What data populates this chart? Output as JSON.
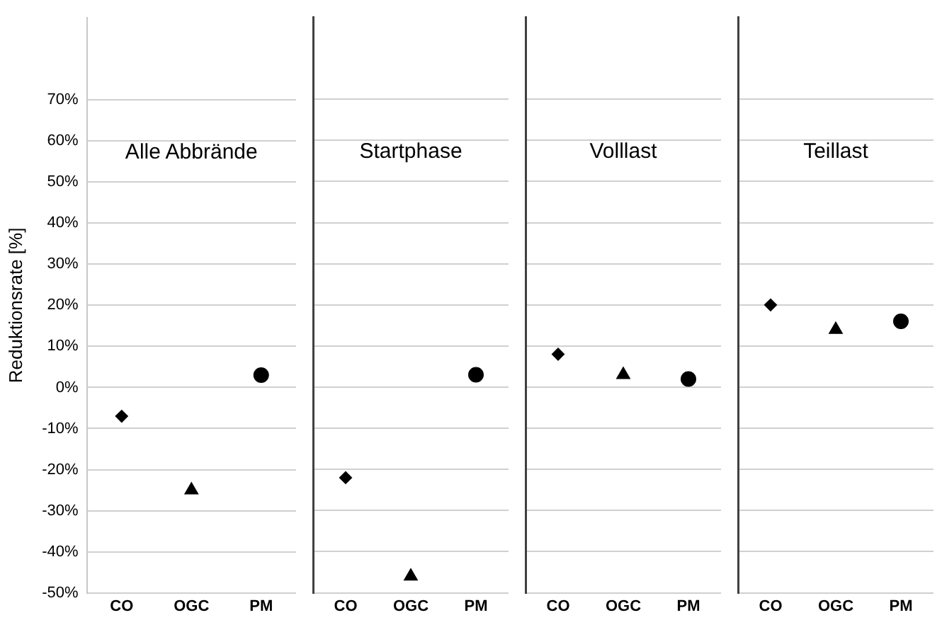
{
  "chart_data": [
    {
      "type": "scatter",
      "title": "Alle Abbrände",
      "ylabel": "Reduktionsrate [%]",
      "categories": [
        "CO",
        "OGC",
        "PM"
      ],
      "ylim": [
        -50,
        90
      ],
      "yticks": [
        {
          "value": -50,
          "label": "-50%"
        },
        {
          "value": -40,
          "label": "-40%"
        },
        {
          "value": -30,
          "label": "-30%"
        },
        {
          "value": -20,
          "label": "-20%"
        },
        {
          "value": -10,
          "label": "-10%"
        },
        {
          "value": 0,
          "label": "0%"
        },
        {
          "value": 10,
          "label": "10%"
        },
        {
          "value": 20,
          "label": "20%"
        },
        {
          "value": 30,
          "label": "30%"
        },
        {
          "value": 40,
          "label": "40%"
        },
        {
          "value": 50,
          "label": "50%"
        },
        {
          "value": 60,
          "label": "60%"
        },
        {
          "value": 70,
          "label": "70%"
        }
      ],
      "grid": "y",
      "legend": false,
      "series": [
        {
          "color": "#000000",
          "marker": "diamond",
          "values": [
            -7,
            null,
            null
          ]
        },
        {
          "color": "#000000",
          "marker": "triangle",
          "values": [
            null,
            -25,
            null
          ]
        },
        {
          "color": "#000000",
          "marker": "circle",
          "values": [
            null,
            null,
            3
          ]
        }
      ]
    },
    {
      "type": "scatter",
      "title": "Startphase",
      "categories": [
        "CO",
        "OGC",
        "PM"
      ],
      "ylim": [
        -50,
        90
      ],
      "yticks": [
        -50,
        -40,
        -30,
        -20,
        -10,
        0,
        10,
        20,
        30,
        40,
        50,
        60,
        70
      ],
      "tick_labels": "x",
      "grid": "y",
      "legend": false,
      "series": [
        {
          "color": "#000000",
          "marker": "diamond",
          "values": [
            -22,
            null,
            null
          ]
        },
        {
          "color": "#000000",
          "marker": "triangle",
          "values": [
            null,
            -46,
            null
          ]
        },
        {
          "color": "#000000",
          "marker": "circle",
          "values": [
            null,
            null,
            3
          ]
        }
      ]
    },
    {
      "type": "scatter",
      "title": "Volllast",
      "categories": [
        "CO",
        "OGC",
        "PM"
      ],
      "ylim": [
        -50,
        90
      ],
      "yticks": [
        -50,
        -40,
        -30,
        -20,
        -10,
        0,
        10,
        20,
        30,
        40,
        50,
        60,
        70
      ],
      "tick_labels": "x",
      "grid": "y",
      "legend": false,
      "series": [
        {
          "color": "#000000",
          "marker": "diamond",
          "values": [
            8,
            null,
            null
          ]
        },
        {
          "color": "#000000",
          "marker": "triangle",
          "values": [
            null,
            3,
            null
          ]
        },
        {
          "color": "#000000",
          "marker": "circle",
          "values": [
            null,
            null,
            2
          ]
        }
      ]
    },
    {
      "type": "scatter",
      "title": "Teillast",
      "categories": [
        "CO",
        "OGC",
        "PM"
      ],
      "ylim": [
        -50,
        90
      ],
      "yticks": [
        -50,
        -40,
        -30,
        -20,
        -10,
        0,
        10,
        20,
        30,
        40,
        50,
        60,
        70
      ],
      "tick_labels": "x",
      "grid": "y",
      "legend": false,
      "series": [
        {
          "color": "#000000",
          "marker": "diamond",
          "values": [
            20,
            null,
            null
          ]
        },
        {
          "color": "#000000",
          "marker": "triangle",
          "values": [
            null,
            14,
            null
          ]
        },
        {
          "color": "#000000",
          "marker": "circle",
          "values": [
            null,
            null,
            16
          ]
        }
      ]
    }
  ]
}
